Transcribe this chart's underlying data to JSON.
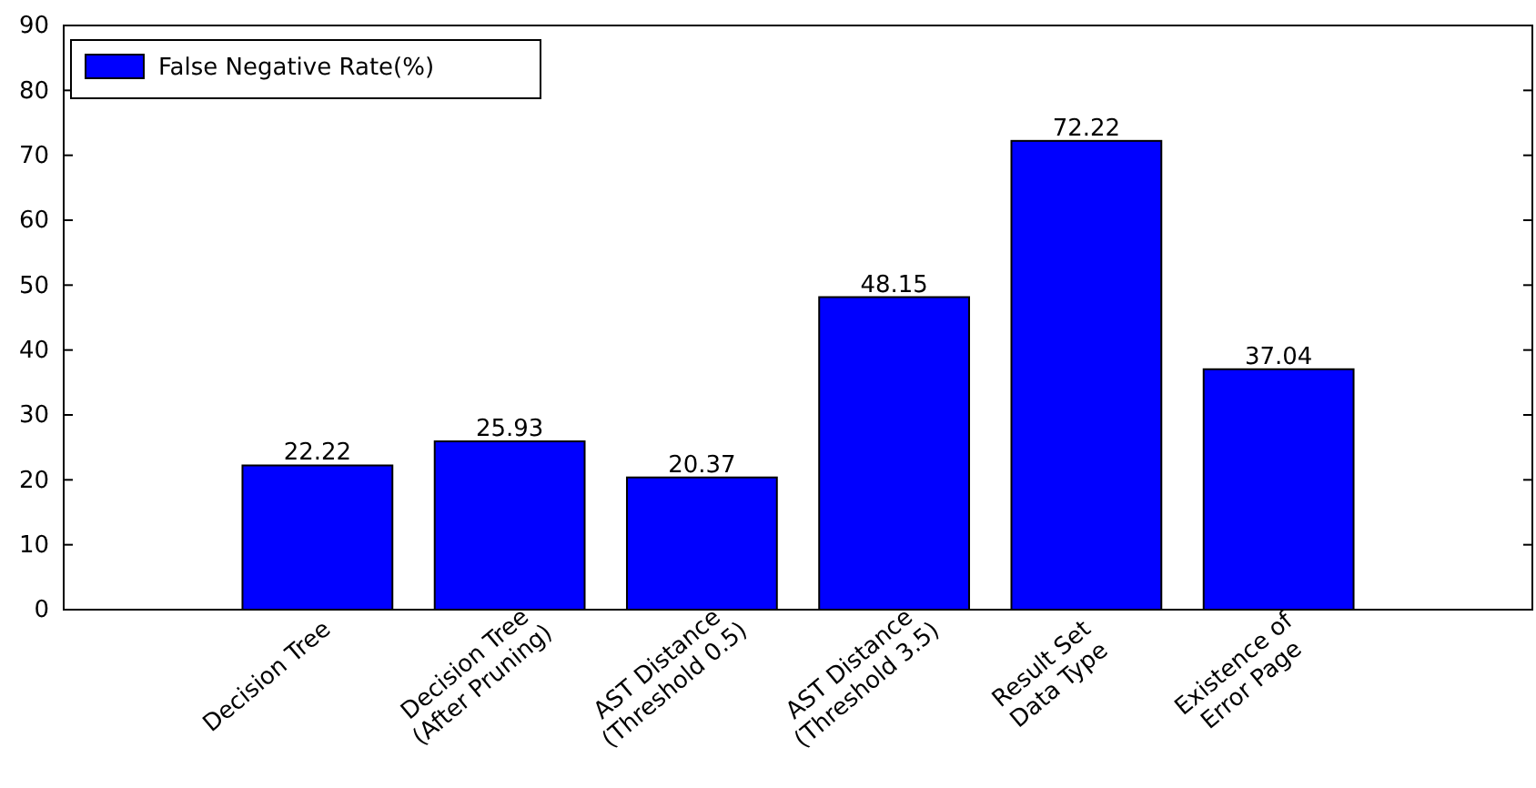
{
  "chart_data": {
    "type": "bar",
    "categories": [
      "Decision Tree",
      "Decision Tree\n(After Pruning)",
      "AST Distance\n(Threshold 0.5)",
      "AST Distance\n(Threshold 3.5)",
      "Result Set\nData Type",
      "Existence of\nError Page"
    ],
    "series": [
      {
        "name": "False Negative Rate(%)",
        "color": "#0000ff",
        "values": [
          22.22,
          25.93,
          20.37,
          48.15,
          72.22,
          37.04
        ]
      }
    ],
    "ylim": [
      0,
      90
    ],
    "yticks": [
      0,
      10,
      20,
      30,
      40,
      50,
      60,
      70,
      80,
      90
    ],
    "data_labels": true,
    "legend": "top left",
    "grid": false
  }
}
